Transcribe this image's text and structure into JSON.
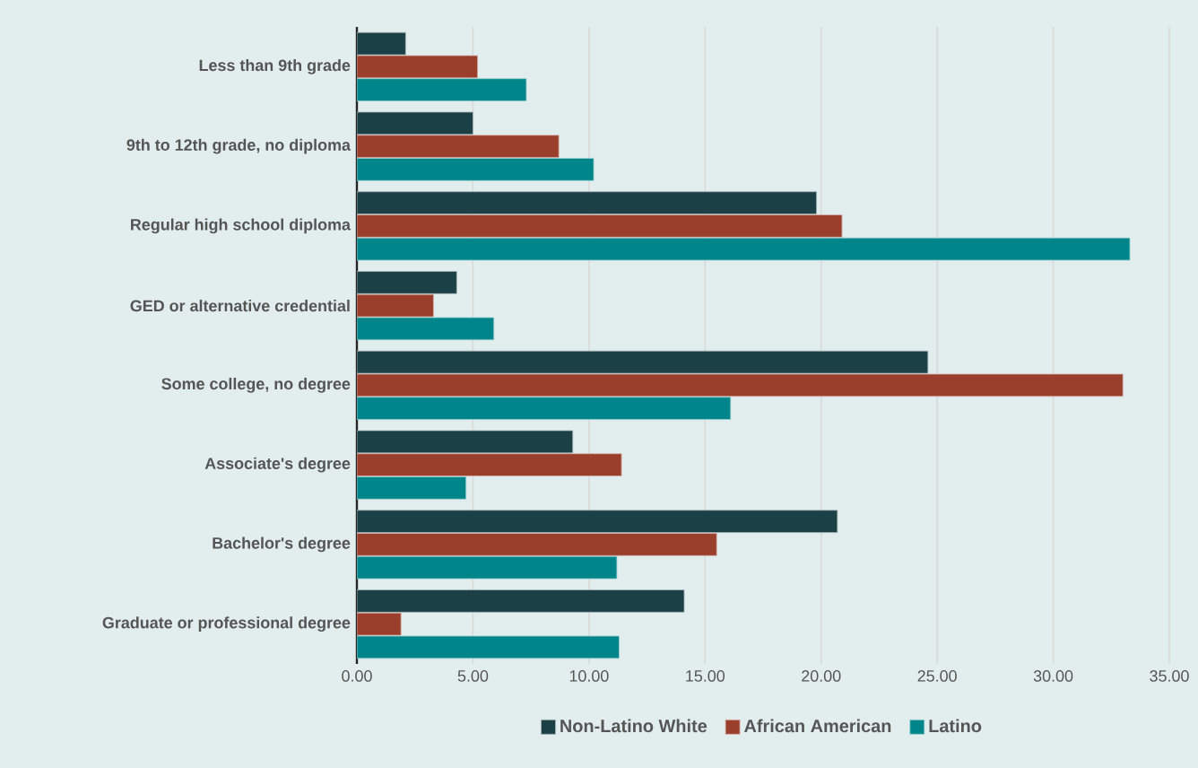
{
  "chart_data": {
    "type": "bar",
    "orientation": "horizontal",
    "categories": [
      "Less than 9th grade",
      "9th to 12th grade, no diploma",
      "Regular high school diploma",
      "GED or alternative credential",
      "Some college, no degree",
      "Associate's degree",
      "Bachelor's degree",
      "Graduate or professional degree"
    ],
    "series": [
      {
        "name": "Non-Latino White",
        "color": "#1b4045",
        "values": [
          2.1,
          5.0,
          19.8,
          4.3,
          24.6,
          9.3,
          20.7,
          14.1
        ]
      },
      {
        "name": "African American",
        "color": "#9a3f2c",
        "values": [
          5.2,
          8.7,
          20.9,
          3.3,
          33.0,
          11.4,
          15.5,
          1.9
        ]
      },
      {
        "name": "Latino",
        "color": "#00868a",
        "values": [
          7.3,
          10.2,
          33.3,
          5.9,
          16.1,
          4.7,
          11.2,
          11.3
        ]
      }
    ],
    "xlim": [
      0,
      35
    ],
    "xticks": [
      {
        "value": 0,
        "label": "0.00"
      },
      {
        "value": 5,
        "label": "5.00"
      },
      {
        "value": 10,
        "label": "10.00"
      },
      {
        "value": 15,
        "label": "15.00"
      },
      {
        "value": 20,
        "label": "20.00"
      },
      {
        "value": 25,
        "label": "25.00"
      },
      {
        "value": 30,
        "label": "30.00"
      },
      {
        "value": 35,
        "label": "35.00"
      }
    ],
    "grid": "x",
    "legend": "bottom"
  }
}
